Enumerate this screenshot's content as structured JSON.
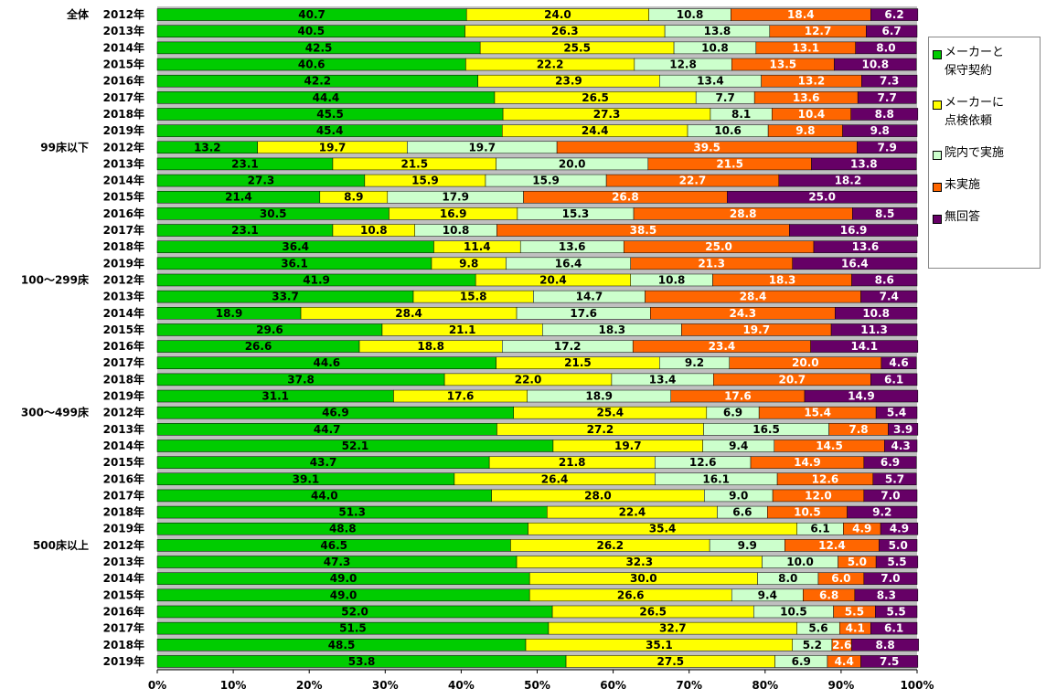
{
  "chart_data": {
    "type": "stacked-bar-horizontal",
    "groups": [
      {
        "name": "全体",
        "categories": [
          "2012年",
          "2013年",
          "2014年",
          "2015年",
          "2016年",
          "2017年",
          "2018年",
          "2019年"
        ]
      },
      {
        "name": "99床以下",
        "categories": [
          "2012年",
          "2013年",
          "2014年",
          "2015年",
          "2016年",
          "2017年",
          "2018年",
          "2019年"
        ]
      },
      {
        "name": "100～299床",
        "categories": [
          "2012年",
          "2013年",
          "2014年",
          "2015年",
          "2016年",
          "2017年",
          "2018年",
          "2019年"
        ]
      },
      {
        "name": "300～499床",
        "categories": [
          "2012年",
          "2013年",
          "2014年",
          "2015年",
          "2016年",
          "2017年",
          "2018年",
          "2019年"
        ]
      },
      {
        "name": "500床以上",
        "categories": [
          "2012年",
          "2013年",
          "2014年",
          "2015年",
          "2016年",
          "2017年",
          "2018年",
          "2019年"
        ]
      }
    ],
    "series": [
      {
        "name": "メーカーと\n保守契約",
        "color": "#00cc00",
        "label_color": "#000000",
        "values": [
          40.7,
          40.5,
          42.5,
          40.6,
          42.2,
          44.4,
          45.5,
          45.4,
          13.2,
          23.1,
          27.3,
          21.4,
          30.5,
          23.1,
          36.4,
          36.1,
          41.9,
          33.7,
          18.9,
          29.6,
          26.6,
          44.6,
          37.8,
          31.1,
          46.9,
          44.7,
          52.1,
          43.7,
          39.1,
          44.0,
          51.3,
          48.8,
          46.5,
          47.3,
          49.0,
          49.0,
          52.0,
          51.5,
          48.5,
          53.8
        ],
        "value_labels": [
          "40.7",
          "40.5",
          "42.5",
          "40.6",
          "42.2",
          "44.4",
          "45.5",
          "45.4",
          "13.2",
          "23.1",
          "27.3",
          "21.4",
          "30.5",
          "23.1",
          "36.4",
          "36.1",
          "41.9",
          "33.7",
          "18.9",
          "29.6",
          "26.6",
          "44.6",
          "37.8",
          "31.1",
          "46.9",
          "44.7",
          "52.1",
          "43.7",
          "39.1",
          "44.0",
          "51.3",
          "48.8",
          "46.5",
          "47.3",
          "49.0",
          "49.0",
          "52.0",
          "51.5",
          "48.5",
          "53.8"
        ]
      },
      {
        "name": "メーカーに\n点検依頼",
        "color": "#ffff00",
        "label_color": "#000000",
        "values": [
          24.0,
          26.3,
          25.5,
          22.2,
          23.9,
          26.5,
          27.3,
          24.4,
          19.7,
          21.5,
          15.9,
          8.9,
          16.9,
          10.8,
          11.4,
          9.8,
          20.4,
          15.8,
          28.4,
          21.1,
          18.8,
          21.5,
          22.0,
          17.6,
          25.4,
          27.2,
          19.7,
          21.8,
          26.4,
          28.0,
          22.4,
          35.4,
          26.2,
          32.3,
          30.0,
          26.6,
          26.5,
          32.7,
          35.1,
          27.5
        ],
        "value_labels": [
          "24.0",
          "26.3",
          "25.5",
          "22.2",
          "23.9",
          "26.5",
          "27.3",
          "24.4",
          "19.7",
          "21.5",
          "15.9",
          "8.9",
          "16.9",
          "10.8",
          "11.4",
          "9.8",
          "20.4",
          "15.8",
          "28.4",
          "21.1",
          "18.8",
          "21.5",
          "22.0",
          "17.6",
          "25.4",
          "27.2",
          "19.7",
          "21.8",
          "26.4",
          "28.0",
          "22.4",
          "35.4",
          "26.2",
          "32.3",
          "30.0",
          "26.6",
          "26.5",
          "32.7",
          "35.1",
          "27.5"
        ]
      },
      {
        "name": "院内で実施",
        "color": "#ccffcc",
        "label_color": "#000000",
        "values": [
          10.8,
          13.8,
          10.8,
          12.8,
          13.4,
          7.7,
          8.1,
          10.6,
          19.7,
          20.0,
          15.9,
          17.9,
          15.3,
          10.8,
          13.6,
          16.4,
          10.8,
          14.7,
          17.6,
          18.3,
          17.2,
          9.2,
          13.4,
          18.9,
          6.9,
          16.5,
          9.4,
          12.6,
          16.1,
          9.0,
          6.6,
          6.1,
          9.9,
          10.0,
          8.0,
          9.4,
          10.5,
          5.6,
          5.2,
          6.9
        ],
        "value_labels": [
          "10.8",
          "13.8",
          "10.8",
          "12.8",
          "13.4",
          "7.7",
          "8.1",
          "10.6",
          "19.7",
          "20.0",
          "15.9",
          "17.9",
          "15.3",
          "10.8",
          "13.6",
          "16.4",
          "10.8",
          "14.7",
          "17.6",
          "18.3",
          "17.2",
          "9.2",
          "13.4",
          "18.9",
          "6.9",
          "16.5",
          "9.4",
          "12.6",
          "16.1",
          "9.0",
          "6.6",
          "6.1",
          "9.9",
          "10.0",
          "8.0",
          "9.4",
          "10.5",
          "5.6",
          "5.2",
          "6.9"
        ]
      },
      {
        "name": "未実施",
        "color": "#ff6600",
        "label_color": "#ffffff",
        "values": [
          18.4,
          12.7,
          13.1,
          13.5,
          13.2,
          13.6,
          10.4,
          9.8,
          39.5,
          21.5,
          22.7,
          26.8,
          28.8,
          38.5,
          25.0,
          21.3,
          18.3,
          28.4,
          24.3,
          19.7,
          23.4,
          20.0,
          20.7,
          17.6,
          15.4,
          7.8,
          14.5,
          14.9,
          12.6,
          12.0,
          10.5,
          4.9,
          12.4,
          5.0,
          6.0,
          6.8,
          5.5,
          4.1,
          2.6,
          4.4
        ],
        "value_labels": [
          "18.4",
          "12.7",
          "13.1",
          "13.5",
          "13.2",
          "13.6",
          "10.4",
          "9.8",
          "39.5",
          "21.5",
          "22.7",
          "26.8",
          "28.8",
          "38.5",
          "25.0",
          "21.3",
          "18.3",
          "28.4",
          "24.3",
          "19.7",
          "23.4",
          "20.0",
          "20.7",
          "17.6",
          "15.4",
          "7.8",
          "14.5",
          "14.9",
          "12.6",
          "12.0",
          "10.5",
          "4.9",
          "12.4",
          "5.0",
          "6.0",
          "6.8",
          "5.5",
          "4.1",
          "2.6",
          "4.4"
        ]
      },
      {
        "name": "無回答",
        "color": "#660066",
        "label_color": "#ffffff",
        "values": [
          6.2,
          6.7,
          8.0,
          10.8,
          7.3,
          7.7,
          8.8,
          9.8,
          7.9,
          13.8,
          18.2,
          25.0,
          8.5,
          16.9,
          13.6,
          16.4,
          8.6,
          7.4,
          10.8,
          11.3,
          14.1,
          4.6,
          6.1,
          14.9,
          5.4,
          3.9,
          4.3,
          6.9,
          5.7,
          7.0,
          9.2,
          4.9,
          5.0,
          5.5,
          7.0,
          8.3,
          5.5,
          6.1,
          8.8,
          7.5
        ],
        "value_labels": [
          "6.2",
          "6.7",
          "8.0",
          "10.8",
          "7.3",
          "7.7",
          "8.8",
          "9.8",
          "7.9",
          "13.8",
          "18.2",
          "25.0",
          "8.5",
          "16.9",
          "13.6",
          "16.4",
          "8.6",
          "7.4",
          "10.8",
          "11.3",
          "14.1",
          "4.6",
          "6.1",
          "14.9",
          "5.4",
          "3.9",
          "4.3",
          "6.9",
          "5.7",
          "7.0",
          "9.2",
          "4.9",
          "5.0",
          "5.5",
          "7.0",
          "8.3",
          "5.5",
          "6.1",
          "8.8",
          "7.5"
        ]
      }
    ],
    "xlim": [
      0,
      100
    ],
    "xticks": [
      {
        "value": 0,
        "label": "0%"
      },
      {
        "value": 10,
        "label": "10%"
      },
      {
        "value": 20,
        "label": "20%"
      },
      {
        "value": 30,
        "label": "30%"
      },
      {
        "value": 40,
        "label": "40%"
      },
      {
        "value": 50,
        "label": "50%"
      },
      {
        "value": 60,
        "label": "60%"
      },
      {
        "value": 70,
        "label": "70%"
      },
      {
        "value": 80,
        "label": "80%"
      },
      {
        "value": 90,
        "label": "90%"
      },
      {
        "value": 100,
        "label": "100%"
      }
    ],
    "legend": "right"
  }
}
